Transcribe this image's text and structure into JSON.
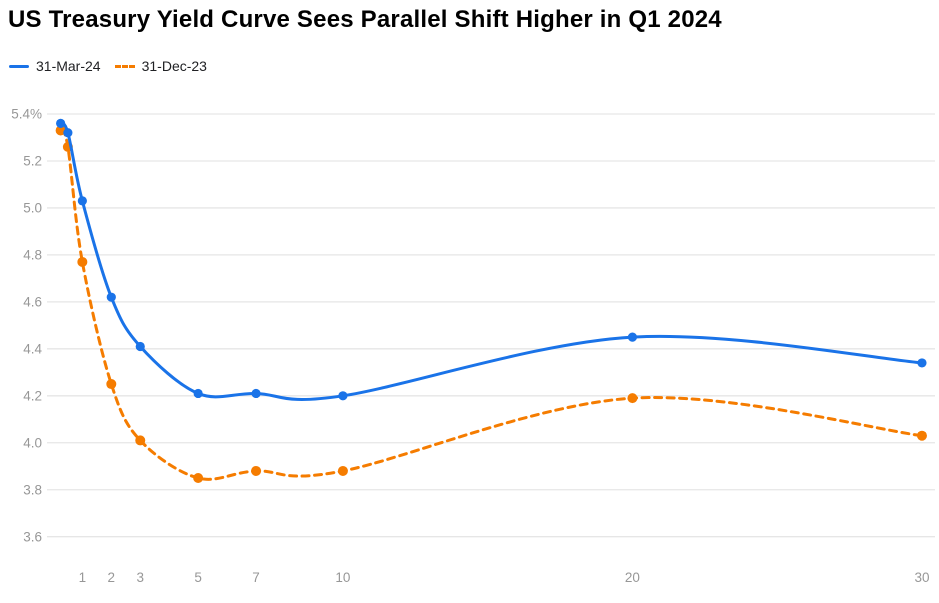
{
  "header": {
    "title": "US Treasury Yield Curve Sees Parallel Shift Higher in Q1 2024"
  },
  "legend": {
    "items": [
      {
        "label": "31-Mar-24",
        "color": "#1a73e8",
        "style": "solid"
      },
      {
        "label": "31-Dec-23",
        "color": "#f57c00",
        "style": "dashed"
      }
    ]
  },
  "chart_data": {
    "type": "line",
    "title": "US Treasury Yield Curve Sees Parallel Shift Higher in Q1 2024",
    "xlabel": "",
    "ylabel": "",
    "x": [
      0.25,
      0.5,
      1,
      2,
      3,
      5,
      7,
      10,
      20,
      30
    ],
    "x_ticks": [
      1,
      2,
      3,
      5,
      7,
      10,
      20,
      30
    ],
    "x_tick_labels": [
      "1",
      "2",
      "3",
      "5",
      "7",
      "10",
      "20",
      "30"
    ],
    "y_ticks": [
      5.4,
      5.2,
      5.0,
      4.8,
      4.6,
      4.4,
      4.2,
      4.0,
      3.8,
      3.6
    ],
    "y_tick_labels": [
      "5.4%",
      "5.2",
      "5.0",
      "4.8",
      "4.6",
      "4.4",
      "4.2",
      "4.0",
      "3.8",
      "3.6"
    ],
    "ylim": [
      3.6,
      5.4
    ],
    "xlim": [
      -0.2,
      30.5
    ],
    "grid": "horizontal",
    "legend_position": "top-left",
    "series": [
      {
        "name": "31-Mar-24",
        "color": "#1a73e8",
        "line_style": "solid",
        "values": [
          5.36,
          5.32,
          5.03,
          4.62,
          4.41,
          4.21,
          4.21,
          4.2,
          4.45,
          4.34
        ]
      },
      {
        "name": "31-Dec-23",
        "color": "#f57c00",
        "line_style": "dashed",
        "values": [
          5.33,
          5.26,
          4.77,
          4.25,
          4.01,
          3.85,
          3.88,
          3.88,
          4.19,
          4.03
        ]
      }
    ]
  },
  "colors": {
    "grid": "#e6e6e6",
    "axis_text": "#979797",
    "title_text": "#000000",
    "legend_text": "#202124",
    "background": "#ffffff"
  }
}
